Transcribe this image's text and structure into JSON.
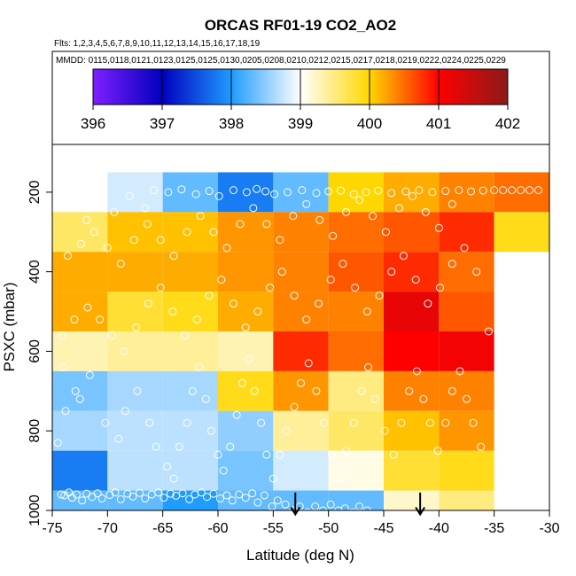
{
  "chart_data": {
    "type": "heatmap",
    "title": "ORCAS RF01-19 CO2_AO2",
    "flights_line": "Flts: 1,2,3,4,5,6,7,8,9,10,11,12,13,14,15,16,17,18,19",
    "dates_line": "MMDD: 0115,0118,0121,0123,0125,0125,0130,0205,0208,0210,0212,0215,0217,0218,0219,0222,0224,0225,0229",
    "xlabel": "Latitude (deg N)",
    "ylabel": "PSXC (mbar)",
    "xlim": [
      -75,
      -30
    ],
    "ylim": [
      1000,
      80
    ],
    "xticks": [
      -75,
      -70,
      -65,
      -60,
      -55,
      -50,
      -45,
      -40,
      -35,
      -30
    ],
    "yticks": [
      200,
      400,
      600,
      800,
      1000
    ],
    "colorbar": {
      "range": [
        396,
        402
      ],
      "ticks": [
        396,
        397,
        398,
        399,
        400,
        401,
        402
      ],
      "colors": [
        "#7f1fff",
        "#0000bf",
        "#1e9cff",
        "#ffffff",
        "#ffd700",
        "#ff0000",
        "#8b1a1a"
      ]
    },
    "grid": {
      "lat_edges": [
        -75,
        -70,
        -65,
        -60,
        -55,
        -50,
        -45,
        -40,
        -35,
        -30
      ],
      "p_edges": [
        150,
        250,
        350,
        450,
        550,
        650,
        750,
        850,
        950,
        1050
      ],
      "values": [
        [
          null,
          398.8,
          398.3,
          397.8,
          398.3,
          400.0,
          400.2,
          400.4,
          400.5
        ],
        [
          399.6,
          400.1,
          400.1,
          400.3,
          400.4,
          400.5,
          400.6,
          400.8,
          399.9
        ],
        [
          400.2,
          400.2,
          400.2,
          400.3,
          400.4,
          400.6,
          400.8,
          400.5,
          null
        ],
        [
          400.2,
          399.8,
          399.9,
          400.2,
          400.4,
          400.4,
          401.2,
          400.6,
          null
        ],
        [
          399.3,
          399.4,
          399.4,
          399.3,
          400.8,
          400.5,
          401.0,
          401.1,
          null
        ],
        [
          398.4,
          398.6,
          398.6,
          399.9,
          400.3,
          399.5,
          400.4,
          400.4,
          null
        ],
        [
          398.6,
          398.7,
          398.7,
          398.5,
          399.4,
          399.6,
          400.1,
          400.3,
          null
        ],
        [
          397.8,
          398.7,
          398.7,
          398.4,
          398.8,
          399.1,
          399.8,
          399.9,
          null
        ],
        [
          398.3,
          398.3,
          398.0,
          398.3,
          398.3,
          398.3,
          399.2,
          399.5,
          null
        ]
      ]
    },
    "annotations": [
      {
        "type": "arrow-down",
        "lat": -53.0,
        "p_from": 955,
        "p_to": 1010
      },
      {
        "type": "arrow-down",
        "lat": -41.7,
        "p_from": 955,
        "p_to": 1010
      }
    ],
    "points": [
      [
        -74.2,
        960
      ],
      [
        -73.9,
        962
      ],
      [
        -73.5,
        955
      ],
      [
        -73.2,
        968
      ],
      [
        -72.8,
        960
      ],
      [
        -72.3,
        975
      ],
      [
        -71.9,
        958
      ],
      [
        -71.4,
        966
      ],
      [
        -70.9,
        957
      ],
      [
        -70.5,
        970
      ],
      [
        -69.8,
        961
      ],
      [
        -69.3,
        955
      ],
      [
        -68.8,
        972
      ],
      [
        -68.2,
        958
      ],
      [
        -67.7,
        965
      ],
      [
        -67.1,
        956
      ],
      [
        -66.6,
        970
      ],
      [
        -66.0,
        960
      ],
      [
        -65.4,
        955
      ],
      [
        -64.9,
        968
      ],
      [
        -64.3,
        958
      ],
      [
        -63.8,
        963
      ],
      [
        -63.2,
        957
      ],
      [
        -62.6,
        972
      ],
      [
        -62.1,
        960
      ],
      [
        -61.5,
        955
      ],
      [
        -61.0,
        966
      ],
      [
        -60.4,
        958
      ],
      [
        -59.8,
        970
      ],
      [
        -59.2,
        962
      ],
      [
        -58.7,
        975
      ],
      [
        -58.1,
        960
      ],
      [
        -57.5,
        968
      ],
      [
        -56.9,
        957
      ],
      [
        -56.4,
        980
      ],
      [
        -55.8,
        962
      ],
      [
        -55.1,
        990
      ],
      [
        -54.6,
        975
      ],
      [
        -53.9,
        985
      ],
      [
        -53.2,
        1000
      ],
      [
        -52.6,
        990
      ],
      [
        -51.9,
        1005
      ],
      [
        -51.2,
        990
      ],
      [
        -50.5,
        1000
      ],
      [
        -49.8,
        985
      ],
      [
        -49.1,
        1000
      ],
      [
        -48.5,
        995
      ],
      [
        -47.8,
        1005
      ],
      [
        -47.2,
        990
      ],
      [
        -46.5,
        1000
      ],
      [
        -74.5,
        830
      ],
      [
        -73.8,
        750
      ],
      [
        -72.9,
        700
      ],
      [
        -71.6,
        660
      ],
      [
        -74.0,
        640
      ],
      [
        -72.5,
        720
      ],
      [
        -70.2,
        780
      ],
      [
        -69.0,
        820
      ],
      [
        -68.4,
        750
      ],
      [
        -67.3,
        700
      ],
      [
        -66.2,
        780
      ],
      [
        -65.6,
        840
      ],
      [
        -64.6,
        890
      ],
      [
        -64.0,
        920
      ],
      [
        -63.5,
        840
      ],
      [
        -62.8,
        780
      ],
      [
        -62.3,
        700
      ],
      [
        -61.7,
        640
      ],
      [
        -61.1,
        720
      ],
      [
        -60.6,
        800
      ],
      [
        -60.0,
        860
      ],
      [
        -59.5,
        900
      ],
      [
        -58.9,
        840
      ],
      [
        -58.3,
        760
      ],
      [
        -57.8,
        680
      ],
      [
        -57.2,
        620
      ],
      [
        -56.7,
        700
      ],
      [
        -56.1,
        780
      ],
      [
        -55.6,
        860
      ],
      [
        -55.0,
        920
      ],
      [
        -54.4,
        860
      ],
      [
        -53.8,
        800
      ],
      [
        -53.1,
        740
      ],
      [
        -52.5,
        680
      ],
      [
        -51.8,
        630
      ],
      [
        -51.1,
        700
      ],
      [
        -50.4,
        780
      ],
      [
        -49.7,
        860
      ],
      [
        -49.0,
        920
      ],
      [
        -48.4,
        850
      ],
      [
        -47.7,
        780
      ],
      [
        -47.0,
        700
      ],
      [
        -46.4,
        640
      ],
      [
        -45.8,
        720
      ],
      [
        -44.9,
        800
      ],
      [
        -44.1,
        860
      ],
      [
        -43.4,
        780
      ],
      [
        -42.7,
        700
      ],
      [
        -42.0,
        650
      ],
      [
        -41.4,
        720
      ],
      [
        -40.8,
        780
      ],
      [
        -40.1,
        850
      ],
      [
        -39.4,
        780
      ],
      [
        -38.8,
        700
      ],
      [
        -38.1,
        650
      ],
      [
        -37.5,
        720
      ],
      [
        -36.9,
        780
      ],
      [
        -36.2,
        840
      ],
      [
        -74.1,
        560
      ],
      [
        -73.0,
        520
      ],
      [
        -71.8,
        490
      ],
      [
        -70.7,
        520
      ],
      [
        -69.6,
        560
      ],
      [
        -68.5,
        600
      ],
      [
        -67.4,
        540
      ],
      [
        -66.3,
        480
      ],
      [
        -65.2,
        440
      ],
      [
        -64.1,
        500
      ],
      [
        -63.0,
        560
      ],
      [
        -61.9,
        520
      ],
      [
        -60.8,
        460
      ],
      [
        -59.7,
        420
      ],
      [
        -58.6,
        480
      ],
      [
        -57.5,
        540
      ],
      [
        -56.4,
        500
      ],
      [
        -55.3,
        440
      ],
      [
        -54.2,
        400
      ],
      [
        -53.1,
        460
      ],
      [
        -52.0,
        520
      ],
      [
        -50.9,
        480
      ],
      [
        -49.8,
        420
      ],
      [
        -48.7,
        380
      ],
      [
        -47.6,
        440
      ],
      [
        -46.5,
        500
      ],
      [
        -45.4,
        460
      ],
      [
        -44.3,
        400
      ],
      [
        -43.2,
        360
      ],
      [
        -42.1,
        420
      ],
      [
        -41.0,
        480
      ],
      [
        -39.9,
        440
      ],
      [
        -38.8,
        380
      ],
      [
        -37.7,
        340
      ],
      [
        -36.6,
        400
      ],
      [
        -35.5,
        550
      ],
      [
        -73.6,
        360
      ],
      [
        -72.4,
        330
      ],
      [
        -71.2,
        300
      ],
      [
        -70.0,
        340
      ],
      [
        -68.8,
        380
      ],
      [
        -67.6,
        320
      ],
      [
        -66.4,
        280
      ],
      [
        -65.2,
        320
      ],
      [
        -64.0,
        360
      ],
      [
        -62.8,
        300
      ],
      [
        -61.6,
        260
      ],
      [
        -60.4,
        300
      ],
      [
        -59.2,
        340
      ],
      [
        -58.0,
        280
      ],
      [
        -56.8,
        240
      ],
      [
        -55.6,
        280
      ],
      [
        -54.4,
        320
      ],
      [
        -53.2,
        260
      ],
      [
        -52.0,
        230
      ],
      [
        -50.8,
        270
      ],
      [
        -49.6,
        310
      ],
      [
        -48.4,
        250
      ],
      [
        -47.2,
        220
      ],
      [
        -46.0,
        260
      ],
      [
        -44.8,
        300
      ],
      [
        -43.6,
        240
      ],
      [
        -42.4,
        210
      ],
      [
        -41.2,
        250
      ],
      [
        -40.0,
        290
      ],
      [
        -38.8,
        230
      ],
      [
        -73.1,
        240
      ],
      [
        -71.9,
        270
      ],
      [
        -69.4,
        250
      ],
      [
        -68.0,
        210
      ],
      [
        -66.6,
        240
      ],
      [
        -65.8,
        195
      ],
      [
        -64.5,
        200
      ],
      [
        -63.3,
        193
      ],
      [
        -62.0,
        205
      ],
      [
        -60.8,
        197
      ],
      [
        -59.9,
        210
      ],
      [
        -58.6,
        195
      ],
      [
        -57.4,
        200
      ],
      [
        -56.5,
        192
      ],
      [
        -55.7,
        198
      ],
      [
        -54.9,
        205
      ],
      [
        -53.7,
        200
      ],
      [
        -52.4,
        195
      ],
      [
        -51.1,
        202
      ],
      [
        -50.0,
        198
      ],
      [
        -48.9,
        196
      ],
      [
        -47.7,
        205
      ],
      [
        -46.6,
        200
      ],
      [
        -45.5,
        196
      ],
      [
        -44.3,
        202
      ],
      [
        -43.0,
        198
      ],
      [
        -41.8,
        195
      ],
      [
        -40.6,
        200
      ],
      [
        -39.4,
        197
      ],
      [
        -38.2,
        195
      ],
      [
        -37.1,
        198
      ],
      [
        -36.0,
        196
      ],
      [
        -35.0,
        195
      ],
      [
        -34.2,
        195
      ],
      [
        -33.4,
        195
      ],
      [
        -32.6,
        195
      ],
      [
        -31.8,
        195
      ],
      [
        -31.0,
        195
      ]
    ]
  }
}
